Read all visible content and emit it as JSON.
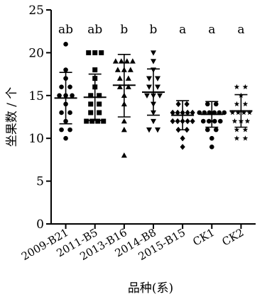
{
  "chart_data": {
    "type": "scatter",
    "title": "",
    "xlabel": "品种(系)",
    "ylabel": "坐果数 / 个",
    "ylim": [
      0,
      25
    ],
    "yticks": [
      0,
      5,
      10,
      15,
      20,
      25
    ],
    "grid": false,
    "legend": "none",
    "categories": [
      "2009-B21",
      "2011-B5",
      "2013-B16",
      "2014-B8",
      "2015-B15",
      "CK1",
      "CK2"
    ],
    "markers": [
      "circle",
      "square",
      "triangle-up",
      "triangle-down",
      "diamond",
      "circle",
      "star"
    ],
    "significance": [
      "ab",
      "ab",
      "b",
      "b",
      "a",
      "a",
      "a"
    ],
    "summary": [
      {
        "mean": 14.7,
        "sd_low": 11.7,
        "sd_high": 17.7
      },
      {
        "mean": 14.8,
        "sd_low": 12.1,
        "sd_high": 17.5
      },
      {
        "mean": 16.2,
        "sd_low": 12.5,
        "sd_high": 19.8
      },
      {
        "mean": 15.4,
        "sd_low": 12.7,
        "sd_high": 18.1
      },
      {
        "mean": 12.7,
        "sd_low": 11.0,
        "sd_high": 14.4
      },
      {
        "mean": 12.8,
        "sd_low": 11.3,
        "sd_high": 14.3
      },
      {
        "mean": 13.2,
        "sd_low": 11.3,
        "sd_high": 15.1
      }
    ],
    "points": [
      [
        21,
        18,
        17,
        16,
        16,
        15,
        15,
        15,
        14,
        13,
        13,
        12,
        11,
        11,
        10
      ],
      [
        20,
        20,
        20,
        18,
        17,
        16,
        15,
        15,
        14,
        14,
        13,
        13,
        12,
        12,
        12,
        12
      ],
      [
        19,
        19,
        19,
        19,
        18,
        18,
        18,
        17,
        17,
        16,
        16,
        15,
        14,
        12,
        11,
        8
      ],
      [
        20,
        19,
        18,
        17,
        17,
        16,
        16,
        15,
        15,
        15,
        14,
        13,
        12,
        11,
        11
      ],
      [
        14,
        14,
        13,
        13,
        13,
        13,
        13,
        12,
        12,
        12,
        12,
        12,
        11,
        11,
        10,
        9
      ],
      [
        14,
        14,
        13,
        13,
        13,
        13,
        13,
        13,
        12,
        12,
        12,
        12,
        11,
        11,
        10,
        9
      ],
      [
        16,
        16,
        15,
        14,
        14,
        13,
        13,
        13,
        13,
        12,
        12,
        12,
        11,
        11,
        10,
        10
      ]
    ]
  }
}
